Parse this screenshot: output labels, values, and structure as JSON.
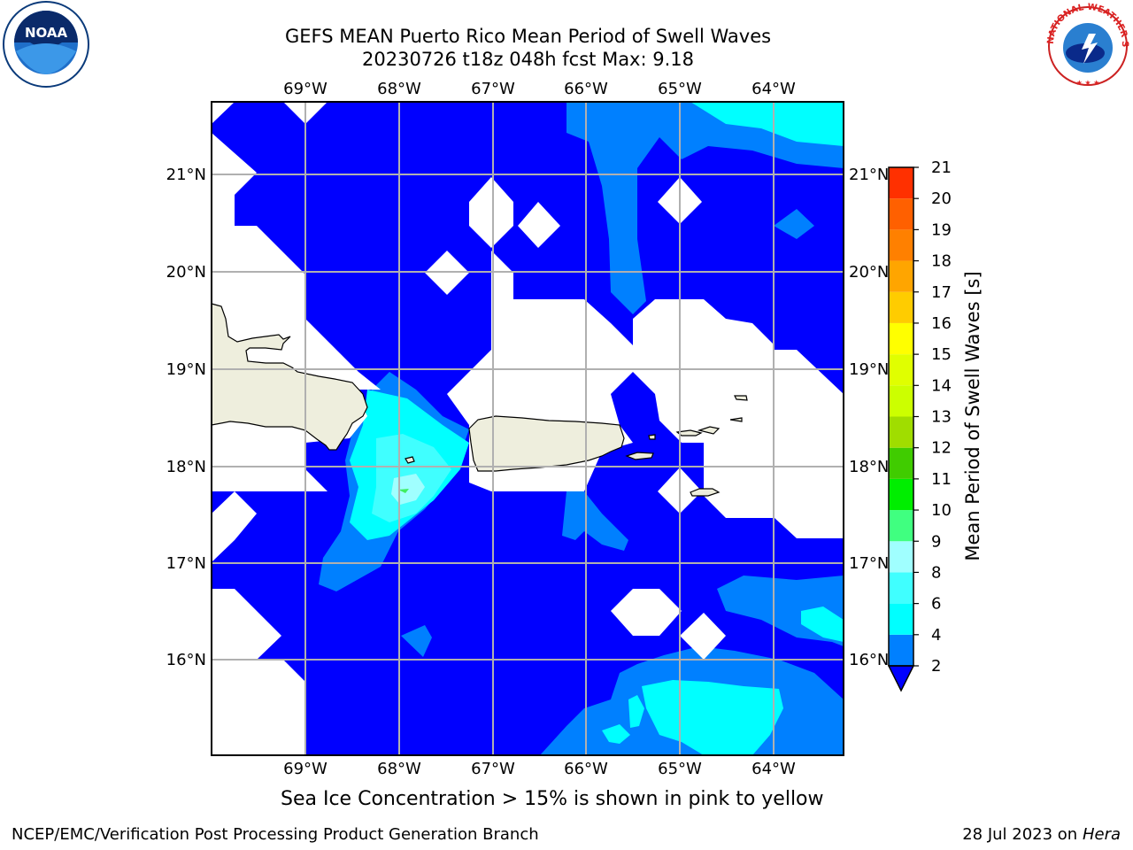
{
  "header": {
    "title": "GEFS MEAN Puerto Rico Mean Period of Swell Waves",
    "subtitle": "20230726 t18z 048h fcst   Max: 9.18"
  },
  "map": {
    "lon_labels": [
      "69°W",
      "68°W",
      "67°W",
      "66°W",
      "65°W",
      "64°W"
    ],
    "lat_labels": [
      "21°N",
      "20°N",
      "19°N",
      "18°N",
      "17°N",
      "16°N"
    ],
    "colors": {
      "land": "#eeeedd",
      "water_low": "#0000ff",
      "water_mid": "#0080ff",
      "water_high": "#00ffff",
      "water_higher": "#40ffff",
      "water_peak": "#a0ffff",
      "grid": "#b0b0b0"
    }
  },
  "colorbar": {
    "label": "Mean Period of Swell Waves [s]",
    "ticks": [
      "2",
      "4",
      "6",
      "8",
      "9",
      "10",
      "11",
      "12",
      "13",
      "14",
      "15",
      "16",
      "17",
      "18",
      "19",
      "20",
      "21"
    ],
    "colors": [
      "#0080ff",
      "#00ffff",
      "#40ffff",
      "#a0ffff",
      "#40ff80",
      "#00ee00",
      "#40cc00",
      "#a0dd00",
      "#ccff00",
      "#e0ff00",
      "#ffff00",
      "#ffcc00",
      "#ffa500",
      "#ff8000",
      "#ff6000",
      "#ff3000",
      "#ff0000"
    ],
    "under_color": "#0000ff"
  },
  "caption": "Sea Ice Concentration > 15% is shown in pink to yellow",
  "footer": {
    "left": "NCEP/EMC/Verification Post Processing Product Generation Branch",
    "right_prefix": "28 Jul 2023 on ",
    "right_host": "Hera"
  },
  "logos": {
    "noaa_text": "NOAA",
    "nws_text": "NATIONAL WEATHER SERVICE"
  }
}
